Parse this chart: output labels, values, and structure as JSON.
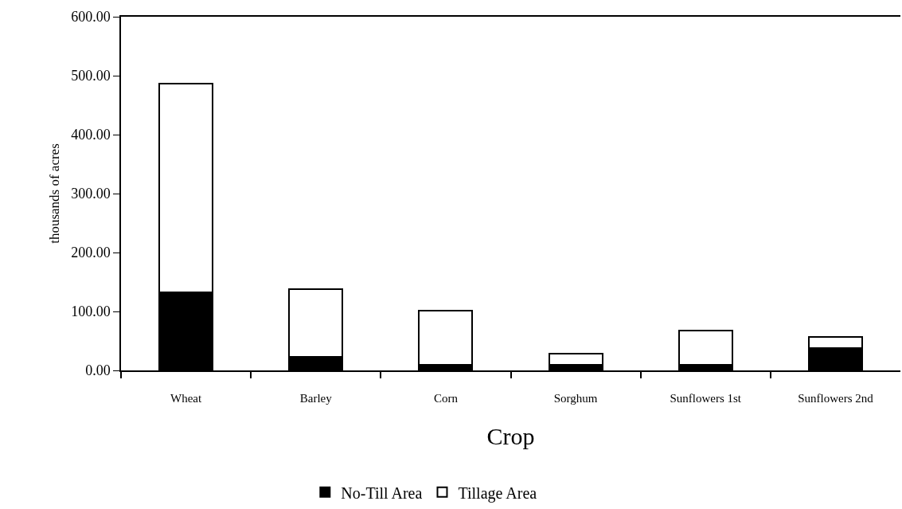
{
  "chart_data": {
    "type": "bar",
    "xlabel": "Crop",
    "ylabel": "thousands of acres",
    "categories": [
      "Wheat",
      "Barley",
      "Corn",
      "Sorghum",
      "Sunflowers 1st",
      "Sunflowers 2nd"
    ],
    "series": [
      {
        "name": "No-Till Area",
        "color": "#000000",
        "values": [
          132,
          23,
          10,
          10,
          10,
          38
        ]
      },
      {
        "name": "Tillage Area",
        "color": "#ffffff",
        "values": [
          355,
          115,
          92,
          18,
          57,
          19
        ]
      }
    ],
    "stacked": true,
    "ylim": [
      0,
      600
    ],
    "yticks": [
      {
        "value": 0,
        "label": "0.00"
      },
      {
        "value": 100,
        "label": "100.00"
      },
      {
        "value": 200,
        "label": "200.00"
      },
      {
        "value": 300,
        "label": "300.00"
      },
      {
        "value": 400,
        "label": "400.00"
      },
      {
        "value": 500,
        "label": "500.00"
      },
      {
        "value": 600,
        "label": "600.00"
      }
    ],
    "legend": "bottom"
  }
}
